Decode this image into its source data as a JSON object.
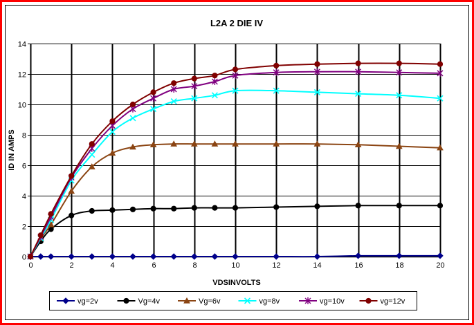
{
  "chart_data": {
    "type": "line",
    "title": "L2A 2 DIE IV",
    "xlabel": "VDSINVOLTS",
    "ylabel": "ID IN AMPS",
    "xlim": [
      0,
      20
    ],
    "ylim": [
      0,
      14
    ],
    "xticks": [
      0,
      2,
      4,
      6,
      8,
      10,
      12,
      14,
      16,
      18,
      20
    ],
    "yticks": [
      0,
      2,
      4,
      6,
      8,
      10,
      12,
      14
    ],
    "grid": "vertical and horizontal",
    "legend_position": "bottom",
    "series": [
      {
        "name": "vg=2v",
        "color": "#00008B",
        "marker": "diamond",
        "x": [
          0,
          0.5,
          1,
          2,
          3,
          4,
          5,
          6,
          7,
          8,
          9,
          10,
          12,
          14,
          16,
          18,
          20
        ],
        "y": [
          0,
          0,
          0,
          0,
          0,
          0,
          0,
          0,
          0,
          0,
          0,
          0,
          0,
          0,
          0.05,
          0.05,
          0.05
        ]
      },
      {
        "name": "Vg=4v",
        "color": "#000000",
        "marker": "circle",
        "x": [
          0,
          0.5,
          1,
          2,
          3,
          4,
          5,
          6,
          7,
          8,
          9,
          10,
          12,
          14,
          16,
          18,
          20
        ],
        "y": [
          0,
          1.0,
          1.8,
          2.7,
          3.0,
          3.05,
          3.1,
          3.15,
          3.15,
          3.2,
          3.2,
          3.2,
          3.25,
          3.3,
          3.35,
          3.35,
          3.35
        ]
      },
      {
        "name": "Vg=6v",
        "color": "#8B4513",
        "marker": "triangle",
        "x": [
          0,
          0.5,
          1,
          2,
          3,
          4,
          5,
          6,
          7,
          8,
          9,
          10,
          12,
          14,
          16,
          18,
          20
        ],
        "y": [
          0,
          1.2,
          2.1,
          4.3,
          5.9,
          6.8,
          7.2,
          7.35,
          7.4,
          7.4,
          7.4,
          7.4,
          7.4,
          7.4,
          7.35,
          7.25,
          7.15
        ]
      },
      {
        "name": "vg=8v",
        "color": "#00FFFF",
        "marker": "x",
        "x": [
          0,
          0.5,
          1,
          2,
          3,
          4,
          5,
          6,
          7,
          8,
          9,
          10,
          12,
          14,
          16,
          18,
          20
        ],
        "y": [
          0,
          1.2,
          2.4,
          5.0,
          6.7,
          8.2,
          9.1,
          9.7,
          10.2,
          10.4,
          10.6,
          10.9,
          10.9,
          10.8,
          10.7,
          10.6,
          10.4
        ]
      },
      {
        "name": "vg=10v",
        "color": "#800080",
        "marker": "star",
        "x": [
          0,
          0.5,
          1,
          2,
          3,
          4,
          5,
          6,
          7,
          8,
          9,
          10,
          12,
          14,
          16,
          18,
          20
        ],
        "y": [
          0,
          1.3,
          2.6,
          5.2,
          7.1,
          8.6,
          9.7,
          10.4,
          11.0,
          11.2,
          11.5,
          11.9,
          12.1,
          12.15,
          12.15,
          12.1,
          12.05
        ]
      },
      {
        "name": "vg=12v",
        "color": "#800000",
        "marker": "circle",
        "x": [
          0,
          0.5,
          1,
          2,
          3,
          4,
          5,
          6,
          7,
          8,
          9,
          10,
          12,
          14,
          16,
          18,
          20
        ],
        "y": [
          0,
          1.4,
          2.8,
          5.3,
          7.4,
          8.9,
          10.0,
          10.8,
          11.4,
          11.7,
          11.9,
          12.3,
          12.55,
          12.65,
          12.7,
          12.7,
          12.65
        ]
      }
    ]
  }
}
